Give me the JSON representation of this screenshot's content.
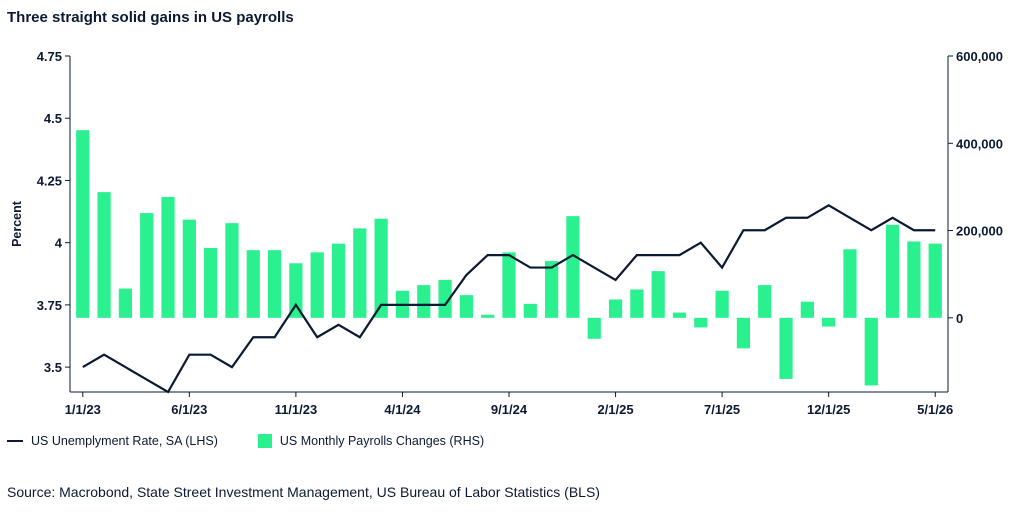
{
  "title": "Three straight solid gains in US payrolls",
  "legend": {
    "line_label": "US Unemplyment Rate, SA (LHS)",
    "bar_label": "US Monthly Payrolls Changes (RHS)"
  },
  "source": "Source: Macrobond, State Street Investment Management, US Bureau of Labor Statistics (BLS)",
  "colors": {
    "line": "#0b1a33",
    "bar": "#2bf08f",
    "axis": "#0b1a33"
  },
  "chart_data": {
    "type": "bar",
    "x_ticks": [
      "1/1/23",
      "6/1/23",
      "11/1/23",
      "4/1/24",
      "9/1/24",
      "2/1/25",
      "7/1/25",
      "12/1/25",
      "5/1/26"
    ],
    "left_axis": {
      "label": "Percent",
      "ticks": [
        "3.5",
        "3.75",
        "4",
        "4.25",
        "4.5",
        "4.75"
      ],
      "range": [
        3.4,
        4.75
      ]
    },
    "right_axis": {
      "ticks": [
        "0",
        "200,000",
        "400,000",
        "600,000"
      ],
      "range": [
        -170000,
        600000
      ]
    },
    "series": [
      {
        "name": "US Unemplyment Rate, SA (LHS)",
        "type": "line",
        "values": [
          3.5,
          3.55,
          3.5,
          3.45,
          3.4,
          3.55,
          3.55,
          3.5,
          3.62,
          3.62,
          3.75,
          3.62,
          3.67,
          3.62,
          3.75,
          3.75,
          3.75,
          3.75,
          3.87,
          3.95,
          3.95,
          3.9,
          3.9,
          3.95,
          3.9,
          3.85,
          3.95,
          3.95,
          3.95,
          4.0,
          3.9,
          4.05,
          4.05,
          4.1,
          4.1,
          4.15,
          4.1,
          4.05,
          4.1,
          4.05,
          4.05
        ]
      },
      {
        "name": "US Monthly Payrolls Changes (RHS)",
        "type": "bar",
        "values": [
          430000,
          288000,
          67000,
          240000,
          277000,
          225000,
          160000,
          217000,
          155000,
          155000,
          125000,
          150000,
          170000,
          205000,
          227000,
          62000,
          75000,
          87000,
          52000,
          7000,
          150000,
          32000,
          130000,
          233000,
          -48000,
          42000,
          65000,
          107000,
          12000,
          -22000,
          62000,
          -70000,
          75000,
          -140000,
          37000,
          -20000,
          157000,
          -155000,
          213000,
          175000,
          170000
        ]
      }
    ]
  }
}
